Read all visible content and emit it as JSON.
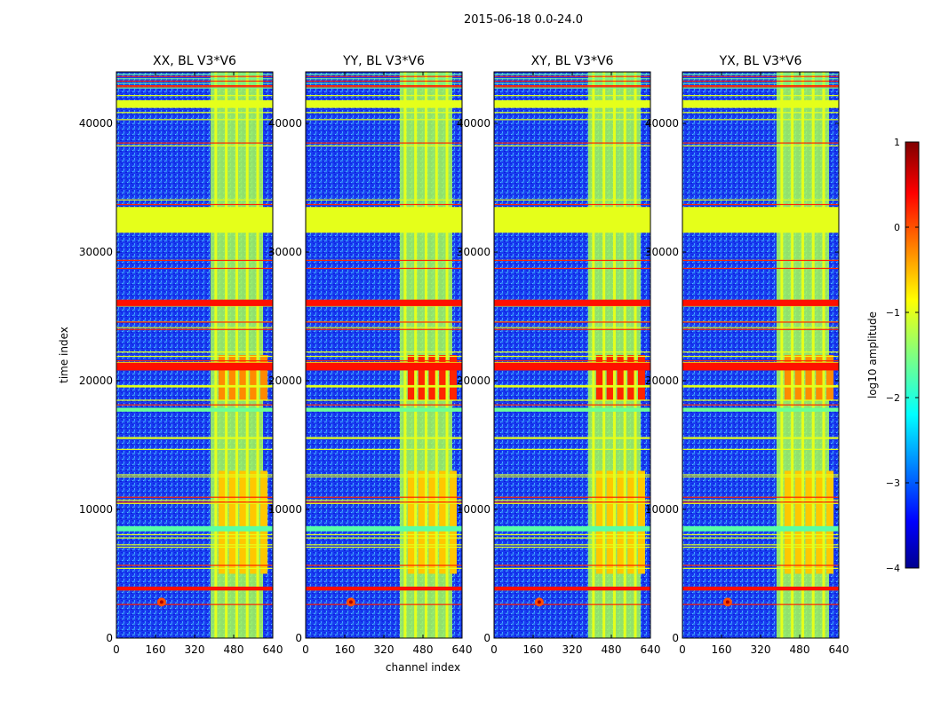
{
  "suptitle": "2015-06-18 0.0-24.0",
  "chart_data": {
    "type": "heatmap",
    "title": "2015-06-18 0.0-24.0",
    "xlabel": "channel index",
    "ylabel": "time index",
    "xlim": [
      0,
      640
    ],
    "ylim": [
      0,
      44000
    ],
    "x_ticks": [
      0,
      160,
      320,
      480,
      640
    ],
    "y_ticks": [
      0,
      10000,
      20000,
      30000,
      40000
    ],
    "x_tick_labels": [
      "0",
      "160",
      "320",
      "480",
      "640"
    ],
    "y_tick_labels": [
      "0",
      "10000",
      "20000",
      "30000",
      "40000"
    ],
    "panels": [
      {
        "title": "XX, BL V3*V6",
        "corr": "XX"
      },
      {
        "title": "YY, BL V3*V6",
        "corr": "YY"
      },
      {
        "title": "XY, BL V3*V6",
        "corr": "XY"
      },
      {
        "title": "YX, BL V3*V6",
        "corr": "YX"
      }
    ],
    "colorbar": {
      "label": "log10 amplitude",
      "range": [
        -4,
        1
      ],
      "ticks": [
        1,
        0,
        -1,
        -2,
        -3,
        -4
      ],
      "tick_labels": [
        "1",
        "0",
        "−1",
        "−2",
        "−3",
        "−4"
      ],
      "colormap": "jet"
    },
    "flagged_time_ranges": [
      {
        "range": [
          31500,
          33500
        ],
        "log_amp": -1.0
      },
      {
        "range": [
          25800,
          26300
        ],
        "log_amp": 0.3
      },
      {
        "range": [
          20800,
          21400
        ],
        "log_amp": 0.3
      },
      {
        "range": [
          3700,
          4000
        ],
        "log_amp": 0.3
      },
      {
        "range": [
          41200,
          41800
        ],
        "log_amp": -1.0
      },
      {
        "range": [
          17600,
          17900
        ],
        "log_amp": -1.6
      },
      {
        "range": [
          8300,
          8700
        ],
        "log_amp": -1.7
      }
    ],
    "rfi_channel_band": [
      385,
      600
    ]
  },
  "colors": {
    "jet_low": "#00008f",
    "jet_mid": "#80ff80",
    "jet_high": "#800000",
    "background": "#ffffff"
  }
}
